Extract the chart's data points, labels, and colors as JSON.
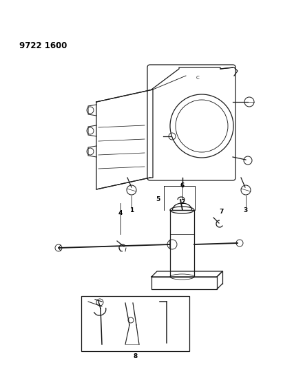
{
  "title": "9722 1600",
  "bg_color": "#ffffff",
  "line_color": "#1a1a1a",
  "label_color": "#000000",
  "title_fontsize": 8.5,
  "label_fontsize": 6.5
}
